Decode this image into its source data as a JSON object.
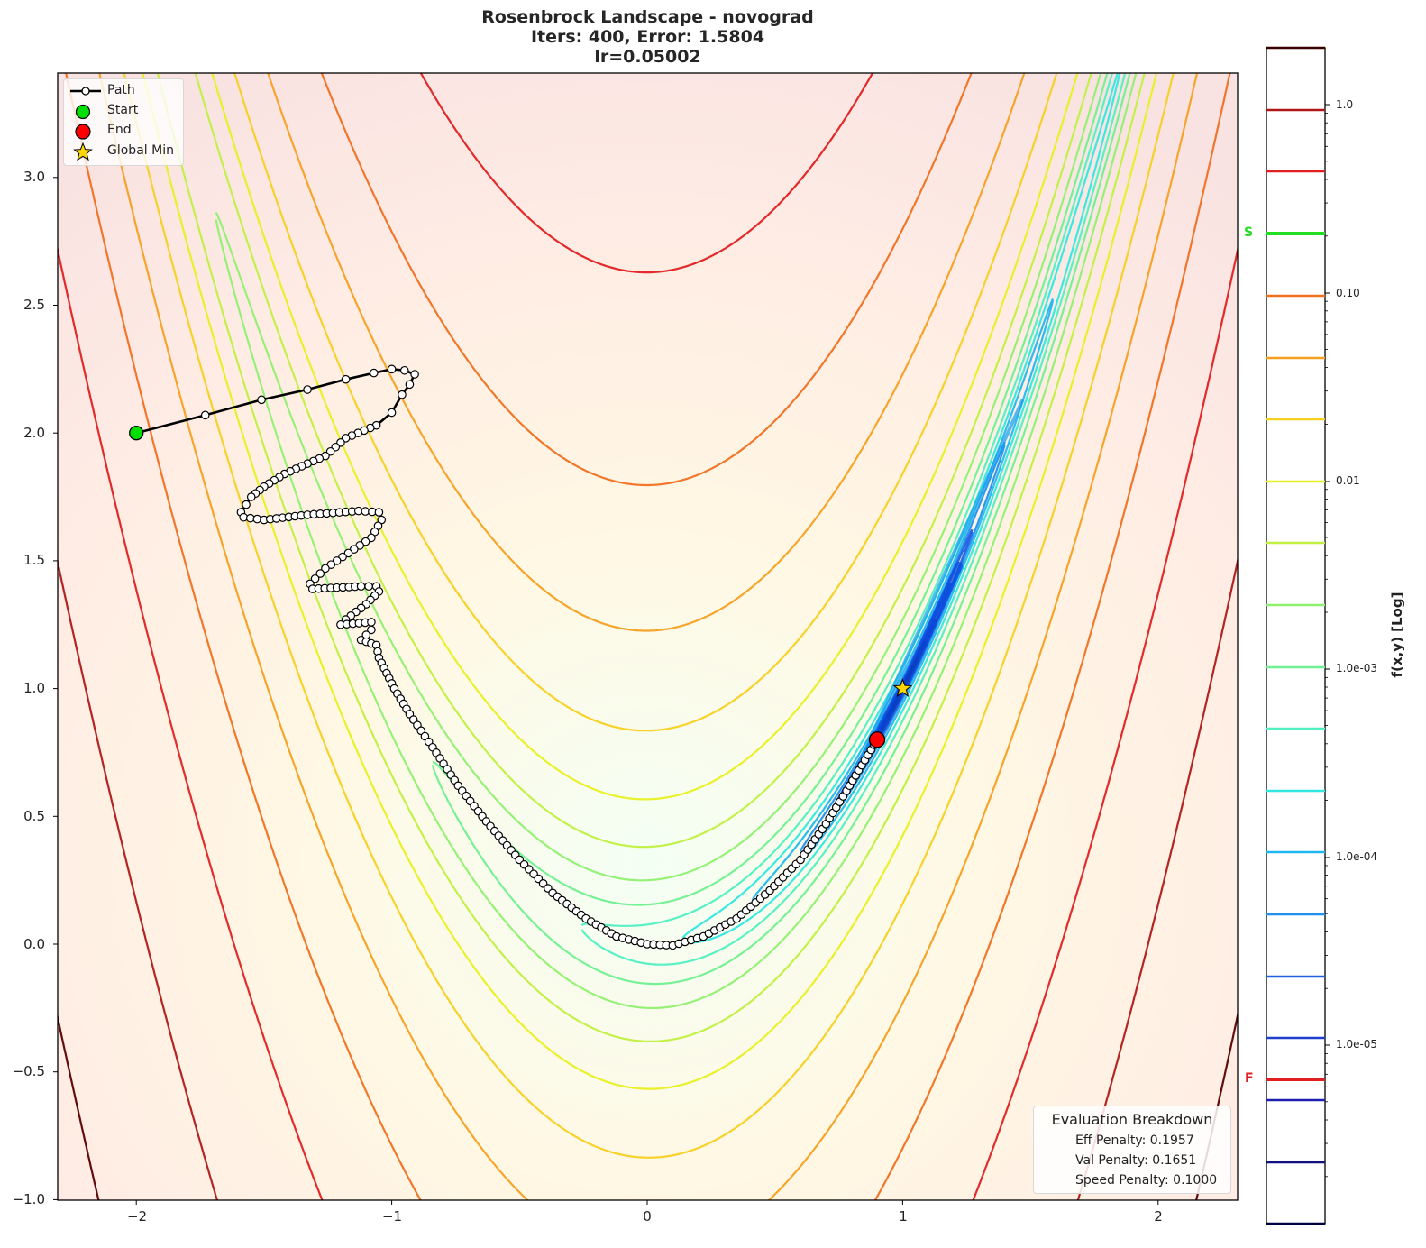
{
  "chart_data": {
    "type": "line",
    "title": "Rosenbrock Landscape - novograd",
    "subtitle_lines": [
      "Iters: 400, Error: 1.5804",
      "lr=0.05002"
    ],
    "xlabel": "",
    "ylabel": "",
    "xlim": [
      -2.31,
      2.31
    ],
    "ylim": [
      -1.0,
      3.41
    ],
    "x_ticks": [
      "-2",
      "-1",
      "0",
      "1",
      "2"
    ],
    "y_ticks": [
      "3.0",
      "2.5",
      "2.0",
      "1.5",
      "1.0",
      "0.5",
      "0.0",
      "-0.5",
      "-1.0"
    ],
    "grid": false,
    "background": "Rosenbrock function contour map (log-scaled colors, jet colormap)",
    "legend": {
      "position": "upper left",
      "entries": [
        "Path",
        "Start",
        "End",
        "Global Min"
      ]
    },
    "series": [
      {
        "name": "Path",
        "style": "black line with white circle markers",
        "points_approx": [
          [
            -2.0,
            2.0
          ],
          [
            -1.73,
            2.07
          ],
          [
            -1.51,
            2.13
          ],
          [
            -1.33,
            2.17
          ],
          [
            -1.18,
            2.21
          ],
          [
            -1.07,
            2.235
          ],
          [
            -1.0,
            2.25
          ],
          [
            -0.95,
            2.245
          ],
          [
            -0.91,
            2.23
          ],
          [
            -0.93,
            2.19
          ],
          [
            -0.96,
            2.15
          ],
          [
            -1.0,
            2.08
          ],
          [
            -1.06,
            2.03
          ],
          [
            -1.18,
            1.98
          ],
          [
            -1.26,
            1.91
          ],
          [
            -1.33,
            1.88
          ],
          [
            -1.42,
            1.84
          ],
          [
            -1.5,
            1.79
          ],
          [
            -1.55,
            1.75
          ],
          [
            -1.57,
            1.72
          ],
          [
            -1.59,
            1.69
          ],
          [
            -1.58,
            1.67
          ],
          [
            -1.5,
            1.66
          ],
          [
            -1.33,
            1.68
          ],
          [
            -1.13,
            1.695
          ],
          [
            -1.05,
            1.69
          ],
          [
            -1.04,
            1.66
          ],
          [
            -1.08,
            1.59
          ],
          [
            -1.17,
            1.53
          ],
          [
            -1.26,
            1.47
          ],
          [
            -1.32,
            1.41
          ],
          [
            -1.31,
            1.39
          ],
          [
            -1.12,
            1.4
          ],
          [
            -1.06,
            1.4
          ],
          [
            -1.05,
            1.38
          ],
          [
            -1.1,
            1.33
          ],
          [
            -1.18,
            1.27
          ],
          [
            -1.2,
            1.25
          ],
          [
            -1.08,
            1.26
          ],
          [
            -1.08,
            1.23
          ],
          [
            -1.12,
            1.19
          ],
          [
            -1.06,
            1.17
          ],
          [
            -1.05,
            1.12
          ],
          [
            -1.02,
            1.06
          ],
          [
            -0.99,
            1.0
          ],
          [
            -0.93,
            0.9
          ],
          [
            -0.84,
            0.77
          ],
          [
            -0.74,
            0.62
          ],
          [
            -0.63,
            0.48
          ],
          [
            -0.5,
            0.33
          ],
          [
            -0.37,
            0.2
          ],
          [
            -0.24,
            0.1
          ],
          [
            -0.12,
            0.03
          ],
          [
            0.0,
            0.0
          ],
          [
            0.1,
            -0.005
          ],
          [
            0.22,
            0.03
          ],
          [
            0.35,
            0.1
          ],
          [
            0.48,
            0.21
          ],
          [
            0.6,
            0.33
          ],
          [
            0.7,
            0.47
          ],
          [
            0.78,
            0.6
          ],
          [
            0.84,
            0.7
          ],
          [
            0.9,
            0.8
          ]
        ]
      },
      {
        "name": "Start",
        "x": -2.0,
        "y": 2.0,
        "color": "#00e000"
      },
      {
        "name": "End",
        "x": 0.9,
        "y": 0.8,
        "color": "#ff0000"
      },
      {
        "name": "Global Min",
        "x": 1.0,
        "y": 1.0,
        "color": "#ffd700"
      }
    ],
    "annotations": {
      "evaluation_breakdown": {
        "title": "Evaluation Breakdown",
        "eff_penalty": 0.1957,
        "val_penalty": 0.1651,
        "speed_penalty": 0.1
      }
    },
    "colorbar": {
      "label": "f(x,y) [Log]",
      "scale": "log",
      "ticks": [
        "1.0",
        "0.10",
        "0.01",
        "1.0e-03",
        "1.0e-04",
        "1.0e-05"
      ],
      "levels_colors": [
        "#5a0000",
        "#b01818",
        "#e02020",
        "#f07020",
        "#f5a020",
        "#f5d020",
        "#e8f020",
        "#c0f040",
        "#90f070",
        "#70f090",
        "#50f0c0",
        "#30e8e0",
        "#20b8f0",
        "#2090f0",
        "#2060e0",
        "#2040d0",
        "#2020b0",
        "#101080",
        "#000040"
      ],
      "start_marker": {
        "label": "S",
        "color": "#22dd22"
      },
      "final_marker": {
        "label": "F",
        "color": "#e02020"
      }
    }
  },
  "title": {
    "line1": "Rosenbrock Landscape - novograd",
    "line2": "Iters: 400, Error: 1.5804",
    "line3": "lr=0.05002"
  },
  "axes": {
    "x_ticks": [
      "−2",
      "−1",
      "0",
      "1",
      "2"
    ],
    "y_ticks": [
      "3.0",
      "2.5",
      "2.0",
      "1.5",
      "1.0",
      "0.5",
      "0.0",
      "−0.5",
      "−1.0"
    ]
  },
  "legend": {
    "path": "Path",
    "start": "Start",
    "end": "End",
    "global_min": "Global Min"
  },
  "eval": {
    "title": "Evaluation Breakdown",
    "eff": "Eff Penalty: 0.1957",
    "val": "Val Penalty: 0.1651",
    "speed": "Speed Penalty: 0.1000"
  },
  "colorbar": {
    "label": "f(x,y) [Log]",
    "ticks": [
      "1.0",
      "0.10",
      "0.01",
      "1.0e-03",
      "1.0e-04",
      "1.0e-05"
    ],
    "s_label": "S",
    "f_label": "F"
  }
}
